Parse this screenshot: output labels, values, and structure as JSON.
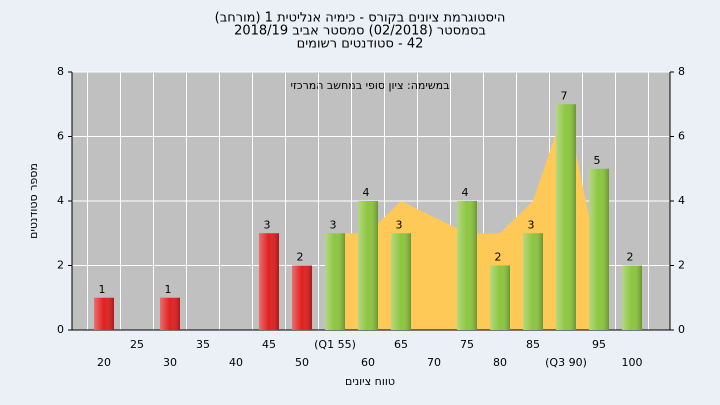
{
  "chart_data": {
    "type": "bar",
    "title": "היסטוגרמת ציונים בקורס - כימיה אנליטית 1 (מורחב)",
    "subtitle": "בסמסטר (02/2018) סמסטר אביב 2018/19",
    "subtitle2": "42 - סטודנטים רשומים",
    "annotation": "במשימה: ציון סופי במחשב המרכזי",
    "x_label": "טווח ציונים",
    "y_label": "מספר סטודנטים",
    "categories": [
      "20",
      "25",
      "30",
      "35",
      "40",
      "45",
      "50",
      "(Q1 55)",
      "60",
      "65",
      "70",
      "75",
      "80",
      "85",
      "(Q3 90)",
      "95",
      "100"
    ],
    "values": [
      1,
      0,
      1,
      0,
      0,
      3,
      2,
      3,
      4,
      3,
      0,
      4,
      2,
      3,
      7,
      5,
      2
    ],
    "colors": [
      "#e02020",
      "#e02020",
      "#e02020",
      "#e02020",
      "#e02020",
      "#e02020",
      "#e02020",
      "#8cc63f",
      "#8cc63f",
      "#8cc63f",
      "#8cc63f",
      "#8cc63f",
      "#8cc63f",
      "#8cc63f",
      "#8cc63f",
      "#8cc63f",
      "#8cc63f"
    ],
    "area": {
      "color": "#ffc957",
      "values": [
        null,
        null,
        null,
        null,
        null,
        null,
        null,
        3,
        3,
        4,
        3.5,
        3,
        3,
        4,
        7,
        2,
        null
      ]
    },
    "ylim": [
      0,
      8
    ],
    "yticks": [
      0,
      2,
      4,
      6,
      8
    ],
    "grid": true
  }
}
